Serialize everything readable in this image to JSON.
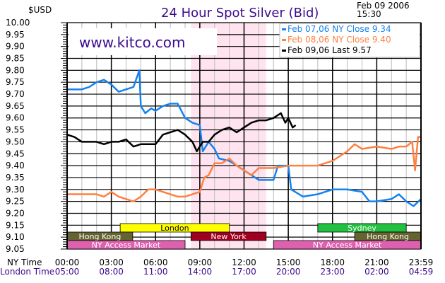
{
  "header": {
    "unit": "$USD",
    "title": "24 Hour Spot Silver (Bid)",
    "date": "Feb 09 2006",
    "time": "15:30",
    "brand": "www.kitco.com"
  },
  "colors": {
    "title": "#3c0a8c",
    "blue": "#1482f0",
    "orange": "#ff8040",
    "black": "#000000",
    "shade": "#ffe4f0"
  },
  "sessions": {
    "london": "London",
    "hong_kong": "Hong Kong",
    "new_york": "New York",
    "ny_access": "NY Access Market",
    "sydney": "Sydney"
  },
  "axis_rows": {
    "ny_label": "NY Time",
    "london_label": "London Time"
  },
  "chart_data": {
    "type": "line",
    "title": "24 Hour Spot Silver (Bid)",
    "ylabel": "$USD",
    "ylim": [
      9.05,
      10.0
    ],
    "xlim": [
      0,
      24
    ],
    "grid": true,
    "legend_placement": "top-right",
    "yticks": [
      "10.00",
      "9.95",
      "9.90",
      "9.85",
      "9.80",
      "9.75",
      "9.70",
      "9.65",
      "9.60",
      "9.55",
      "9.50",
      "9.45",
      "9.40",
      "9.35",
      "9.30",
      "9.25",
      "9.20",
      "9.15",
      "9.10",
      "9.05"
    ],
    "xticks_ny": [
      "00:00",
      "03:00",
      "06:00",
      "09:00",
      "12:00",
      "15:00",
      "18:00",
      "21:00",
      "23:59"
    ],
    "xticks_london": [
      "05:00",
      "08:00",
      "11:00",
      "14:00",
      "17:00",
      "20:00",
      "23:00",
      "02:00",
      "04:59"
    ],
    "series": [
      {
        "name": "Feb 07,06 NY Close 9.34",
        "color": "#1482f0",
        "points": [
          [
            0,
            9.72
          ],
          [
            1,
            9.72
          ],
          [
            1.5,
            9.73
          ],
          [
            2,
            9.75
          ],
          [
            2.5,
            9.76
          ],
          [
            3,
            9.74
          ],
          [
            3.5,
            9.71
          ],
          [
            4,
            9.72
          ],
          [
            4.5,
            9.73
          ],
          [
            4.9,
            9.8
          ],
          [
            5,
            9.65
          ],
          [
            5.3,
            9.62
          ],
          [
            5.7,
            9.64
          ],
          [
            6,
            9.63
          ],
          [
            6.5,
            9.65
          ],
          [
            7,
            9.66
          ],
          [
            7.5,
            9.66
          ],
          [
            8,
            9.6
          ],
          [
            8.5,
            9.58
          ],
          [
            9,
            9.57
          ],
          [
            9.2,
            9.46
          ],
          [
            9.6,
            9.5
          ],
          [
            10,
            9.47
          ],
          [
            10.3,
            9.43
          ],
          [
            11,
            9.42
          ],
          [
            11.5,
            9.4
          ],
          [
            12,
            9.38
          ],
          [
            12.5,
            9.36
          ],
          [
            13,
            9.34
          ],
          [
            14,
            9.34
          ],
          [
            14.3,
            9.4
          ],
          [
            15,
            9.4
          ],
          [
            15.2,
            9.3
          ],
          [
            16,
            9.27
          ],
          [
            17,
            9.28
          ],
          [
            18,
            9.3
          ],
          [
            19,
            9.3
          ],
          [
            20,
            9.29
          ],
          [
            20.5,
            9.25
          ],
          [
            21,
            9.25
          ],
          [
            22,
            9.26
          ],
          [
            22.5,
            9.28
          ],
          [
            23,
            9.25
          ],
          [
            23.5,
            9.23
          ],
          [
            24,
            9.26
          ]
        ]
      },
      {
        "name": "Feb 08,06 NY Close 9.40",
        "color": "#ff8040",
        "points": [
          [
            0,
            9.28
          ],
          [
            1,
            9.28
          ],
          [
            2,
            9.28
          ],
          [
            2.5,
            9.27
          ],
          [
            3,
            9.29
          ],
          [
            3.5,
            9.27
          ],
          [
            4,
            9.26
          ],
          [
            4.5,
            9.25
          ],
          [
            5,
            9.27
          ],
          [
            5.5,
            9.3
          ],
          [
            6,
            9.3
          ],
          [
            6.5,
            9.29
          ],
          [
            7,
            9.28
          ],
          [
            7.5,
            9.27
          ],
          [
            8,
            9.27
          ],
          [
            8.5,
            9.28
          ],
          [
            9,
            9.29
          ],
          [
            9.3,
            9.35
          ],
          [
            9.6,
            9.36
          ],
          [
            10,
            9.41
          ],
          [
            10.5,
            9.41
          ],
          [
            11,
            9.43
          ],
          [
            11.5,
            9.4
          ],
          [
            12,
            9.38
          ],
          [
            12.5,
            9.36
          ],
          [
            13,
            9.39
          ],
          [
            14,
            9.39
          ],
          [
            15,
            9.4
          ],
          [
            16,
            9.4
          ],
          [
            17,
            9.4
          ],
          [
            18,
            9.42
          ],
          [
            19,
            9.46
          ],
          [
            19.5,
            9.49
          ],
          [
            20,
            9.47
          ],
          [
            21,
            9.48
          ],
          [
            22,
            9.47
          ],
          [
            22.5,
            9.48
          ],
          [
            23,
            9.48
          ],
          [
            23.4,
            9.5
          ],
          [
            23.6,
            9.38
          ],
          [
            23.8,
            9.52
          ],
          [
            24,
            9.52
          ]
        ]
      },
      {
        "name": "Feb 09,06 Last 9.57",
        "color": "#000000",
        "points": [
          [
            0,
            9.53
          ],
          [
            0.5,
            9.52
          ],
          [
            1,
            9.5
          ],
          [
            2,
            9.5
          ],
          [
            2.5,
            9.49
          ],
          [
            3,
            9.5
          ],
          [
            3.5,
            9.5
          ],
          [
            4,
            9.51
          ],
          [
            4.5,
            9.48
          ],
          [
            5,
            9.49
          ],
          [
            6,
            9.49
          ],
          [
            6.5,
            9.53
          ],
          [
            7,
            9.54
          ],
          [
            7.5,
            9.55
          ],
          [
            8,
            9.53
          ],
          [
            8.5,
            9.5
          ],
          [
            8.8,
            9.46
          ],
          [
            9.2,
            9.5
          ],
          [
            9.6,
            9.5
          ],
          [
            10,
            9.53
          ],
          [
            10.5,
            9.55
          ],
          [
            11,
            9.56
          ],
          [
            11.5,
            9.54
          ],
          [
            12,
            9.56
          ],
          [
            12.5,
            9.58
          ],
          [
            13,
            9.59
          ],
          [
            13.5,
            9.59
          ],
          [
            14,
            9.6
          ],
          [
            14.5,
            9.62
          ],
          [
            14.8,
            9.58
          ],
          [
            15,
            9.6
          ],
          [
            15.3,
            9.56
          ],
          [
            15.5,
            9.57
          ]
        ]
      }
    ]
  }
}
